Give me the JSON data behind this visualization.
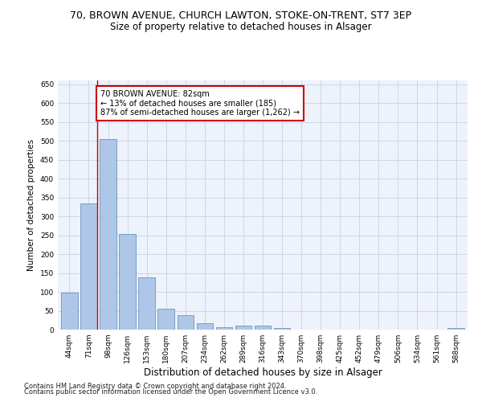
{
  "title_line1": "70, BROWN AVENUE, CHURCH LAWTON, STOKE-ON-TRENT, ST7 3EP",
  "title_line2": "Size of property relative to detached houses in Alsager",
  "xlabel": "Distribution of detached houses by size in Alsager",
  "ylabel": "Number of detached properties",
  "categories": [
    "44sqm",
    "71sqm",
    "98sqm",
    "126sqm",
    "153sqm",
    "180sqm",
    "207sqm",
    "234sqm",
    "262sqm",
    "289sqm",
    "316sqm",
    "343sqm",
    "370sqm",
    "398sqm",
    "425sqm",
    "452sqm",
    "479sqm",
    "506sqm",
    "534sqm",
    "561sqm",
    "588sqm"
  ],
  "values": [
    97,
    335,
    505,
    253,
    138,
    55,
    38,
    18,
    7,
    10,
    10,
    5,
    0,
    0,
    0,
    0,
    0,
    0,
    0,
    0,
    5
  ],
  "bar_color": "#aec6e8",
  "bar_edge_color": "#6699bb",
  "grid_color": "#c8d8ea",
  "background_color": "#eef2fa",
  "property_line_x": 1.45,
  "annotation_text": "70 BROWN AVENUE: 82sqm\n← 13% of detached houses are smaller (185)\n87% of semi-detached houses are larger (1,262) →",
  "annotation_box_color": "#ffffff",
  "annotation_box_edge_color": "#cc0000",
  "ylim": [
    0,
    660
  ],
  "yticks": [
    0,
    50,
    100,
    150,
    200,
    250,
    300,
    350,
    400,
    450,
    500,
    550,
    600,
    650
  ],
  "footer_line1": "Contains HM Land Registry data © Crown copyright and database right 2024.",
  "footer_line2": "Contains public sector information licensed under the Open Government Licence v3.0.",
  "title1_fontsize": 9,
  "title2_fontsize": 8.5,
  "xlabel_fontsize": 8.5,
  "ylabel_fontsize": 7.5,
  "tick_fontsize": 6.5,
  "annotation_fontsize": 7,
  "footer_fontsize": 6
}
